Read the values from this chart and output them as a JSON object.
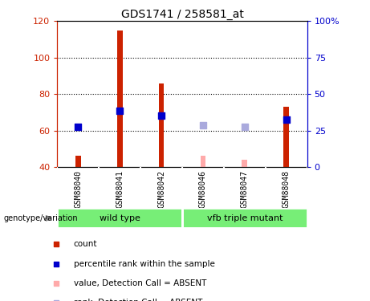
{
  "title": "GDS1741 / 258581_at",
  "categories": [
    "GSM88040",
    "GSM88041",
    "GSM88042",
    "GSM88046",
    "GSM88047",
    "GSM88048"
  ],
  "count_values": [
    46,
    115,
    86,
    null,
    null,
    73
  ],
  "rank_values": [
    62,
    71,
    68,
    null,
    null,
    66
  ],
  "count_absent": [
    null,
    null,
    null,
    46,
    44,
    null
  ],
  "rank_absent": [
    null,
    null,
    null,
    63,
    62,
    null
  ],
  "ylim": [
    40,
    120
  ],
  "y2lim": [
    0,
    100
  ],
  "yticks": [
    40,
    60,
    80,
    100,
    120
  ],
  "y2ticks": [
    0,
    25,
    50,
    75,
    100
  ],
  "y2tick_labels": [
    "0",
    "25",
    "50",
    "75",
    "100%"
  ],
  "grid_lines": [
    60,
    80,
    100
  ],
  "groups": [
    {
      "label": "wild type",
      "start": 0,
      "end": 3
    },
    {
      "label": "vfb triple mutant",
      "start": 3,
      "end": 6
    }
  ],
  "bar_color_present": "#cc2200",
  "bar_color_absent": "#ffaaaa",
  "rank_color_present": "#0000cc",
  "rank_color_absent": "#aaaadd",
  "bar_width": 0.13,
  "rank_marker_size": 28,
  "sample_bg_color": "#cccccc",
  "group_bg_color": "#77ee77",
  "plot_bg": "#ffffff",
  "ylabel_left_color": "#cc2200",
  "ylabel_right_color": "#0000cc",
  "legend_items": [
    {
      "color": "#cc2200",
      "label": "count"
    },
    {
      "color": "#0000cc",
      "label": "percentile rank within the sample"
    },
    {
      "color": "#ffaaaa",
      "label": "value, Detection Call = ABSENT"
    },
    {
      "color": "#aaaadd",
      "label": "rank, Detection Call = ABSENT"
    }
  ]
}
